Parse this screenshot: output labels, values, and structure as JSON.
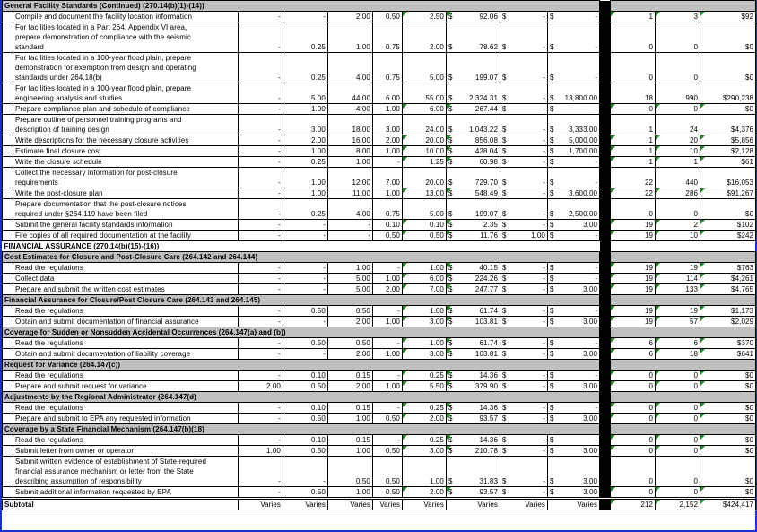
{
  "currency_symbol": "$",
  "colors": {
    "section_bg": "#c0c0c0",
    "window_border": "#1a2fd0",
    "comment_marker": "#1a8a1a"
  },
  "header": {
    "title": "General Facility Standards (Continued) (270.14(b)(1)-(14))"
  },
  "rows": [
    {
      "type": "item",
      "desc": "Compile and document the facility location information",
      "v": [
        "-",
        "-",
        "2.00",
        "0.50",
        "2.50",
        "92.06",
        "-",
        "-",
        "1",
        "3",
        "$92"
      ]
    },
    {
      "type": "item",
      "desc": "For facilities located in a Part 264, Appendix VI area,\nprepare demonstration of compliance with the seismic\nstandard",
      "v": [
        "-",
        "0.25",
        "1.00",
        "0.75",
        "2.00",
        "78.62",
        "-",
        "-",
        "0",
        "0",
        "$0"
      ]
    },
    {
      "type": "item",
      "desc": "For facilities located in a 100-year flood plain, prepare\ndemonstration for exemption from design and operating\nstandards under 264.18(b)",
      "v": [
        "-",
        "0.25",
        "4.00",
        "0.75",
        "5.00",
        "199.07",
        "-",
        "-",
        "0",
        "0",
        "$0"
      ]
    },
    {
      "type": "item",
      "desc": "For facilities located in a 100-year flood plain, prepare\nengineering analysis and studies",
      "v": [
        "-",
        "5.00",
        "44.00",
        "6.00",
        "55.00",
        "2,324.31",
        "-",
        "13,800.00",
        "18",
        "990",
        "$290,238"
      ]
    },
    {
      "type": "item",
      "desc": "Prepare compliance plan and schedule of compliance",
      "v": [
        "-",
        "1.00",
        "4.00",
        "1.00",
        "6.00",
        "267.44",
        "-",
        "-",
        "0",
        "0",
        "$0"
      ]
    },
    {
      "type": "item",
      "desc": "Prepare outline of personnel training programs and\ndescription of training design",
      "v": [
        "-",
        "3.00",
        "18.00",
        "3.00",
        "24.00",
        "1,043.22",
        "-",
        "3,333.00",
        "1",
        "24",
        "$4,376"
      ]
    },
    {
      "type": "item",
      "desc": "Write descriptions for the necessary closure activities",
      "v": [
        "-",
        "2.00",
        "16.00",
        "2.00",
        "20.00",
        "856.08",
        "-",
        "5,000.00",
        "1",
        "20",
        "$5,856"
      ]
    },
    {
      "type": "item",
      "desc": "Estimate final closure cost",
      "v": [
        "-",
        "1.00",
        "8.00",
        "1.00",
        "10.00",
        "428.04",
        "-",
        "1,700.00",
        "1",
        "10",
        "$2,128"
      ]
    },
    {
      "type": "item",
      "desc": "Write the closure schedule",
      "v": [
        "-",
        "0.25",
        "1.00",
        "-",
        "1.25",
        "60.98",
        "-",
        "-",
        "1",
        "1",
        "$61"
      ]
    },
    {
      "type": "item",
      "desc": "Collect the necessary information for post-closure\nrequirements",
      "v": [
        "-",
        "1.00",
        "12.00",
        "7.00",
        "20.00",
        "729.70",
        "-",
        "-",
        "22",
        "440",
        "$16,053"
      ]
    },
    {
      "type": "item",
      "desc": "Write the post-closure plan",
      "v": [
        "-",
        "1.00",
        "11.00",
        "1.00",
        "13.00",
        "548.49",
        "-",
        "3,600.00",
        "22",
        "286",
        "$91,267"
      ]
    },
    {
      "type": "item",
      "desc": "Prepare documentation that the post-closure notices\nrequired under §264.119 have been filed",
      "v": [
        "-",
        "0.25",
        "4.00",
        "0.75",
        "5.00",
        "199.07",
        "-",
        "2,500.00",
        "0",
        "0",
        "$0"
      ]
    },
    {
      "type": "item",
      "desc": "Submit the general facility standards information",
      "v": [
        "-",
        "-",
        "-",
        "0.10",
        "0.10",
        "2.35",
        "-",
        "3.00",
        "19",
        "2",
        "$102"
      ]
    },
    {
      "type": "item",
      "desc": "File copies of all required documentation at the facility",
      "v": [
        "-",
        "-",
        "-",
        "0.50",
        "0.50",
        "11.76",
        "1.00",
        "-",
        "19",
        "10",
        "$242"
      ]
    },
    {
      "type": "plain",
      "desc": "FINANCIAL ASSURANCE (270.14(b)(15)-(16))"
    },
    {
      "type": "section",
      "desc": "Cost Estimates for Closure and Post-Closure Care (264.142 and 264.144)"
    },
    {
      "type": "item",
      "desc": "Read the regulations",
      "v": [
        "-",
        "-",
        "1.00",
        "-",
        "1.00",
        "40.15",
        "-",
        "-",
        "19",
        "19",
        "$763"
      ]
    },
    {
      "type": "item",
      "desc": "Collect data",
      "v": [
        "-",
        "-",
        "5.00",
        "1.00",
        "6.00",
        "224.26",
        "-",
        "-",
        "19",
        "114",
        "$4,261"
      ]
    },
    {
      "type": "item",
      "desc": "Prepare and submit the written cost estimates",
      "v": [
        "-",
        "-",
        "5.00",
        "2.00",
        "7.00",
        "247.77",
        "-",
        "3.00",
        "19",
        "133",
        "$4,765"
      ]
    },
    {
      "type": "section",
      "desc": "Financial Assurance for Closure/Post Closure Care (264.143 and 264.145)"
    },
    {
      "type": "item",
      "desc": "Read the regulations",
      "v": [
        "-",
        "0.50",
        "0.50",
        "-",
        "1.00",
        "61.74",
        "-",
        "-",
        "19",
        "19",
        "$1,173"
      ]
    },
    {
      "type": "item",
      "desc": "Obtain and submit documentation of financial assurance",
      "v": [
        "-",
        "-",
        "2.00",
        "1.00",
        "3.00",
        "103.81",
        "-",
        "3.00",
        "19",
        "57",
        "$2,029"
      ]
    },
    {
      "type": "section",
      "desc": "Coverage for Sudden or Nonsudden Accidental Occurrences (264.147(a) and (b))"
    },
    {
      "type": "item",
      "desc": "Read the regulations",
      "v": [
        "-",
        "0.50",
        "0.50",
        "-",
        "1.00",
        "61.74",
        "-",
        "-",
        "6",
        "6",
        "$370"
      ]
    },
    {
      "type": "item",
      "desc": "Obtain and submit documentation of liability coverage",
      "v": [
        "-",
        "-",
        "2.00",
        "1.00",
        "3.00",
        "103.81",
        "-",
        "3.00",
        "6",
        "18",
        "$641"
      ]
    },
    {
      "type": "section",
      "desc": "Request for Variance (264.147(c))"
    },
    {
      "type": "item",
      "desc": "Read the regulations",
      "v": [
        "-",
        "0.10",
        "0.15",
        "-",
        "0.25",
        "14.36",
        "-",
        "-",
        "0",
        "0",
        "$0"
      ]
    },
    {
      "type": "item",
      "desc": "Prepare and submit request for variance",
      "v": [
        "2.00",
        "0.50",
        "2.00",
        "1.00",
        "5.50",
        "379.90",
        "-",
        "3.00",
        "0",
        "0",
        "$0"
      ]
    },
    {
      "type": "section",
      "desc": "Adjustments by the Regional Administrator (264.147(d)"
    },
    {
      "type": "item",
      "desc": "Read the regulations",
      "v": [
        "-",
        "0.10",
        "0.15",
        "-",
        "0.25",
        "14.36",
        "-",
        "-",
        "0",
        "0",
        "$0"
      ]
    },
    {
      "type": "item",
      "desc": "Prepare and submit to EPA any requested information",
      "v": [
        "-",
        "0.50",
        "1.00",
        "0.50",
        "2.00",
        "93.57",
        "-",
        "3.00",
        "0",
        "0",
        "$0"
      ]
    },
    {
      "type": "section",
      "desc": "Coverage by a State Financial Mechanism (264.147(b)(18)"
    },
    {
      "type": "item",
      "desc": "Read the regulations",
      "v": [
        "-",
        "0.10",
        "0.15",
        "-",
        "0.25",
        "14.36",
        "-",
        "-",
        "0",
        "0",
        "$0"
      ]
    },
    {
      "type": "item",
      "desc": "Submit letter from owner or operator",
      "v": [
        "1.00",
        "0.50",
        "1.00",
        "0.50",
        "3.00",
        "210.78",
        "-",
        "3.00",
        "0",
        "0",
        "$0"
      ]
    },
    {
      "type": "item",
      "desc": "Submit written evidence of establishment of State-required\nfinancial assurance mechanism or letter from the State\ndescribing assumption of responsibility",
      "v": [
        "-",
        "-",
        "0.50",
        "0.50",
        "1.00",
        "31.83",
        "-",
        "3.00",
        "0",
        "0",
        "$0"
      ]
    },
    {
      "type": "item",
      "desc": "Submit additional information requested by EPA",
      "v": [
        "-",
        "0.50",
        "1.00",
        "0.50",
        "2.00",
        "93.57",
        "-",
        "3.00",
        "0",
        "0",
        "$0"
      ]
    }
  ],
  "subtotal": {
    "label": "Subtotal",
    "v": [
      "Varies",
      "Varies",
      "Varies",
      "Varies",
      "Varies",
      "Varies",
      "Varies",
      "Varies",
      "212",
      "2,152",
      "$424,417"
    ]
  }
}
